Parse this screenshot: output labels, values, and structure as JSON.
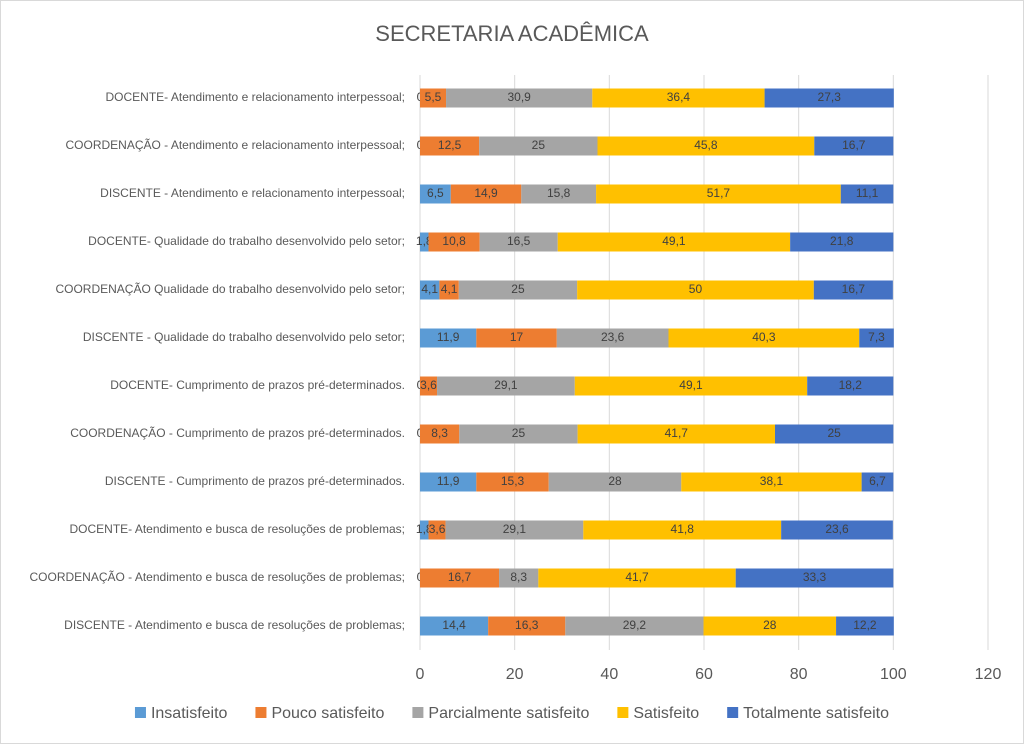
{
  "chart_data": {
    "type": "stacked-bar-horizontal",
    "title": "SECRETARIA ACADÊMICA",
    "categories": [
      "DOCENTE- Atendimento e relacionamento interpessoal;",
      "COORDENAÇÃO - Atendimento e relacionamento interpessoal;",
      "DISCENTE - Atendimento e relacionamento interpessoal;",
      "DOCENTE- Qualidade do trabalho desenvolvido pelo setor;",
      "COORDENAÇÃO Qualidade do trabalho desenvolvido pelo setor;",
      "DISCENTE - Qualidade do trabalho desenvolvido pelo setor;",
      "DOCENTE- Cumprimento de prazos pré-determinados.",
      "COORDENAÇÃO - Cumprimento de prazos pré-determinados.",
      "DISCENTE - Cumprimento de prazos pré-determinados.",
      "DOCENTE- Atendimento e busca de resoluções de problemas;",
      "COORDENAÇÃO - Atendimento e busca de resoluções de problemas;",
      "DISCENTE - Atendimento e busca de resoluções de problemas;"
    ],
    "series": [
      {
        "name": "Insatisfeito",
        "color": "#5b9bd5",
        "values": [
          0,
          0,
          6.5,
          1.8,
          4.1,
          11.9,
          0,
          0,
          11.9,
          1.8,
          0,
          14.4
        ],
        "value_labels": [
          "0",
          "0",
          "6,5",
          "1,8",
          "4,1",
          "11,9",
          "0",
          "0",
          "11,9",
          "1,8",
          "0",
          "14,4"
        ]
      },
      {
        "name": "Pouco satisfeito",
        "color": "#ed7d31",
        "values": [
          5.5,
          12.5,
          14.9,
          10.8,
          4.1,
          17,
          3.6,
          8.3,
          15.3,
          3.6,
          16.7,
          16.3
        ],
        "value_labels": [
          "5,5",
          "12,5",
          "14,9",
          "10,8",
          "4,1",
          "17",
          "3,6",
          "8,3",
          "15,3",
          "3,6",
          "16,7",
          "16,3"
        ]
      },
      {
        "name": "Parcialmente satisfeito",
        "color": "#a5a5a5",
        "values": [
          30.9,
          25,
          15.8,
          16.5,
          25,
          23.6,
          29.1,
          25,
          28,
          29.1,
          8.3,
          29.2
        ],
        "value_labels": [
          "30,9",
          "25",
          "15,8",
          "16,5",
          "25",
          "23,6",
          "29,1",
          "25",
          "28",
          "29,1",
          "8,3",
          "29,2"
        ]
      },
      {
        "name": "Satisfeito",
        "color": "#ffc000",
        "values": [
          36.4,
          45.8,
          51.7,
          49.1,
          50,
          40.3,
          49.1,
          41.7,
          38.1,
          41.8,
          41.7,
          28
        ],
        "value_labels": [
          "36,4",
          "45,8",
          "51,7",
          "49,1",
          "50",
          "40,3",
          "49,1",
          "41,7",
          "38,1",
          "41,8",
          "41,7",
          "28"
        ]
      },
      {
        "name": "Totalmente satisfeito",
        "color": "#4472c4",
        "values": [
          27.3,
          16.7,
          11.1,
          21.8,
          16.7,
          7.3,
          18.2,
          25,
          6.7,
          23.6,
          33.3,
          12.2
        ],
        "value_labels": [
          "27,3",
          "16,7",
          "11,1",
          "21,8",
          "16,7",
          "7,3",
          "18,2",
          "25",
          "6,7",
          "23,6",
          "33,3",
          "12,2"
        ]
      }
    ],
    "xlim": [
      0,
      120
    ],
    "xticks": [
      0,
      20,
      40,
      60,
      80,
      100,
      120
    ],
    "grid": true,
    "legend": "bottom"
  }
}
